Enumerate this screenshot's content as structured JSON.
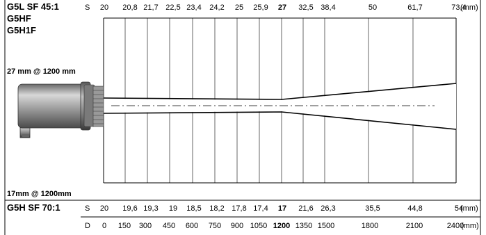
{
  "top": {
    "model_lines": [
      "G5L  SF 45:1",
      "G5HF",
      "G5H1F"
    ],
    "spot_label": "27 mm @ 1200 mm",
    "row_prefix": "S",
    "values": [
      "20",
      "20,8",
      "21,7",
      "22,5",
      "23,4",
      "24,2",
      "25",
      "25,9",
      "27",
      "32,5",
      "38,4",
      "50",
      "61,7",
      "73,4"
    ],
    "unit": "(mm)"
  },
  "bottom": {
    "spot_label": "17mm @ 1200mm",
    "model_line": "G5H SF 70:1",
    "row_prefix": "S",
    "values": [
      "20",
      "19,6",
      "19,3",
      "19",
      "18,5",
      "18,2",
      "17,8",
      "17,4",
      "17",
      "21,6",
      "26,3",
      "35,5",
      "44,8",
      "54"
    ],
    "unit": "(mm)"
  },
  "distance": {
    "row_prefix": "D",
    "values": [
      "0",
      "150",
      "300",
      "450",
      "600",
      "750",
      "900",
      "1050",
      "1200",
      "1350",
      "1500",
      "1800",
      "2100",
      "2400"
    ],
    "unit": "(mm)",
    "focus_value": "1200"
  },
  "colors": {
    "line": "#000000",
    "sensor_body": "#8a8a8a"
  }
}
